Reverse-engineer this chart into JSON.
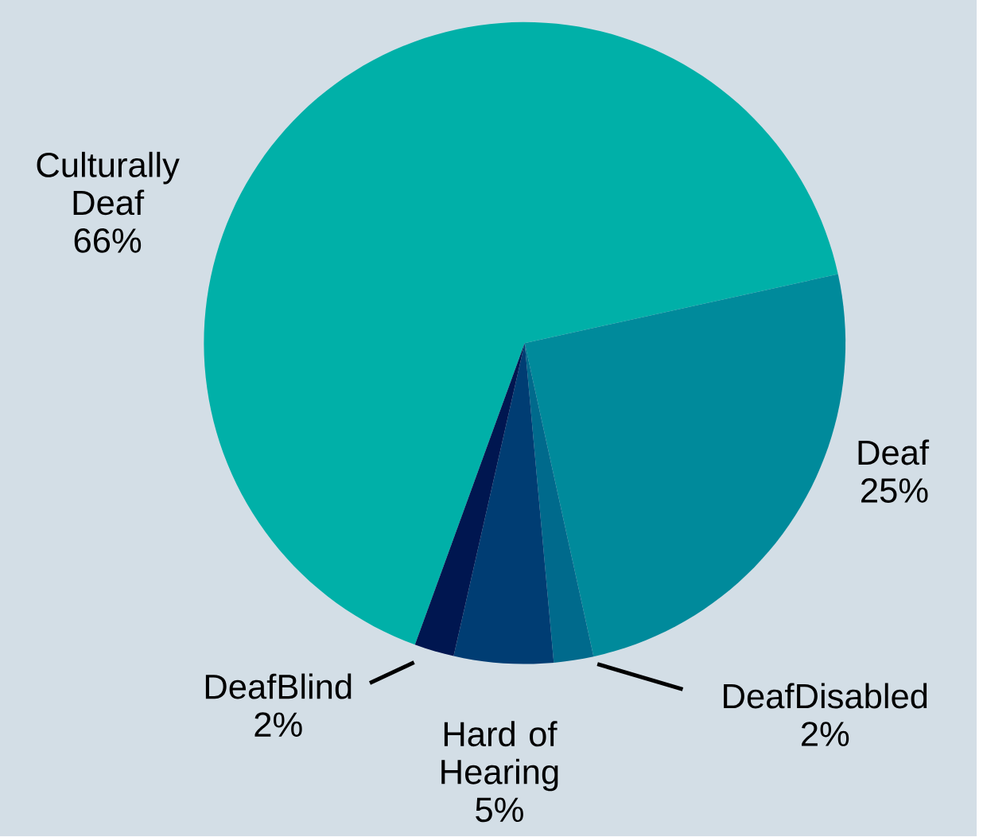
{
  "chart_data": {
    "type": "pie",
    "categories": [
      "Culturally Deaf",
      "Deaf",
      "DeafDisabled",
      "Hard of Hearing",
      "DeafBlind"
    ],
    "values": [
      66,
      25,
      2,
      5,
      2
    ],
    "value_labels": [
      "66%",
      "25%",
      "2%",
      "5%",
      "2%"
    ],
    "colors": [
      "#00b0a8",
      "#008a9b",
      "#006a8c",
      "#003d73",
      "#001650"
    ]
  }
}
